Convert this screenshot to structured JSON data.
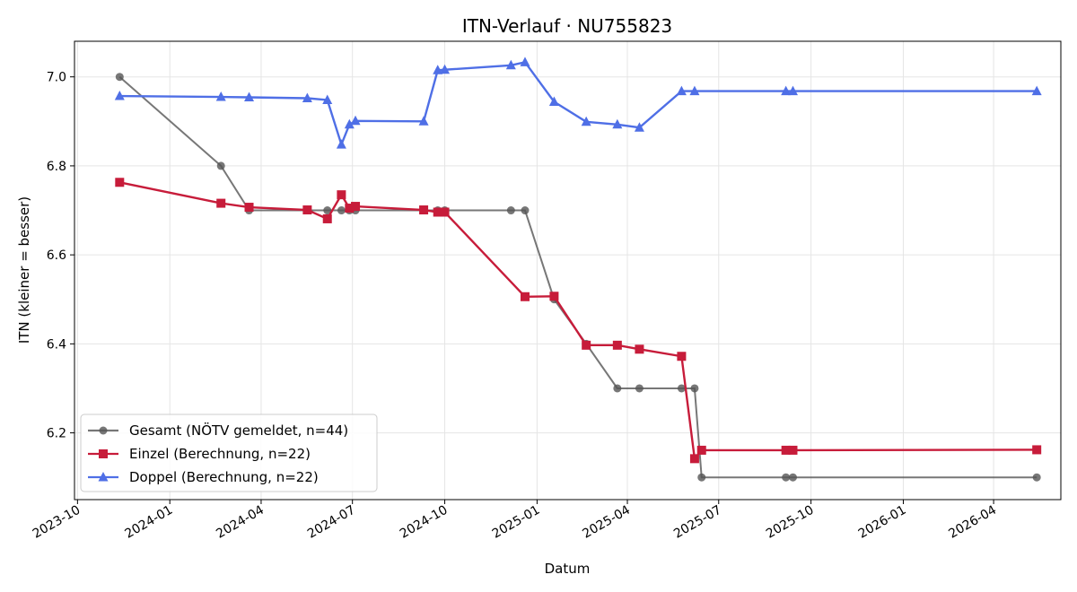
{
  "chart_data": {
    "type": "line",
    "title": "ITN-Verlauf · NU755823",
    "xlabel": "Datum",
    "ylabel": "ITN  (kleiner = besser)",
    "x_ticks": [
      "2023-10",
      "2024-01",
      "2024-04",
      "2024-07",
      "2024-10",
      "2025-01",
      "2025-04",
      "2025-07",
      "2025-10",
      "2026-01",
      "2026-04"
    ],
    "y_ticks": [
      "6.2",
      "6.4",
      "6.6",
      "6.8",
      "7.0"
    ],
    "xlim": [
      "2023-09-28",
      "2026-06-07"
    ],
    "ylim": [
      6.05,
      7.08
    ],
    "grid": true,
    "legend_position": "lower-left",
    "series": [
      {
        "name": "Gesamt (NÖTV gemeldet, n=44)",
        "color": "#555555",
        "marker": "circle",
        "x": [
          "2023-11-12",
          "2024-02-21",
          "2024-03-20",
          "2024-05-17",
          "2024-06-06",
          "2024-06-20",
          "2024-06-28",
          "2024-07-04",
          "2024-09-24",
          "2024-10-01",
          "2024-12-06",
          "2024-12-20",
          "2025-01-18",
          "2025-02-19",
          "2025-03-22",
          "2025-04-13",
          "2025-05-25",
          "2025-06-07",
          "2025-06-14",
          "2025-09-06",
          "2025-09-13",
          "2026-05-14"
        ],
        "y": [
          7.0,
          6.8,
          6.7,
          6.7,
          6.7,
          6.7,
          6.7,
          6.7,
          6.7,
          6.7,
          6.7,
          6.7,
          6.5,
          6.4,
          6.3,
          6.3,
          6.3,
          6.3,
          6.1,
          6.1,
          6.1,
          6.1
        ]
      },
      {
        "name": "Einzel (Berechnung, n=22)",
        "color": "#c71c3a",
        "marker": "square",
        "x": [
          "2023-11-12",
          "2024-02-21",
          "2024-03-20",
          "2024-05-17",
          "2024-06-06",
          "2024-06-20",
          "2024-06-28",
          "2024-07-04",
          "2024-09-10",
          "2024-09-24",
          "2024-10-01",
          "2024-12-20",
          "2025-01-18",
          "2025-02-19",
          "2025-03-22",
          "2025-04-13",
          "2025-05-25",
          "2025-06-07",
          "2025-06-14",
          "2025-09-06",
          "2025-09-13",
          "2026-05-14"
        ],
        "y": [
          6.763,
          6.716,
          6.707,
          6.701,
          6.681,
          6.735,
          6.705,
          6.709,
          6.701,
          6.696,
          6.696,
          6.506,
          6.507,
          6.397,
          6.397,
          6.388,
          6.372,
          6.142,
          6.161,
          6.161,
          6.161,
          6.162
        ]
      },
      {
        "name": "Doppel (Berechnung, n=22)",
        "color": "#4f6fe6",
        "marker": "triangle",
        "x": [
          "2023-11-12",
          "2024-02-21",
          "2024-03-20",
          "2024-05-17",
          "2024-06-06",
          "2024-06-20",
          "2024-06-28",
          "2024-07-04",
          "2024-09-10",
          "2024-09-24",
          "2024-10-01",
          "2024-12-06",
          "2024-12-20",
          "2025-01-18",
          "2025-02-19",
          "2025-03-22",
          "2025-04-13",
          "2025-05-25",
          "2025-06-07",
          "2025-09-06",
          "2025-09-13",
          "2026-05-14"
        ],
        "y": [
          6.957,
          6.955,
          6.954,
          6.952,
          6.948,
          6.848,
          6.893,
          6.901,
          6.9,
          7.015,
          7.016,
          7.026,
          7.033,
          6.944,
          6.899,
          6.893,
          6.886,
          6.968,
          6.968,
          6.968,
          6.968,
          6.968
        ]
      }
    ]
  }
}
